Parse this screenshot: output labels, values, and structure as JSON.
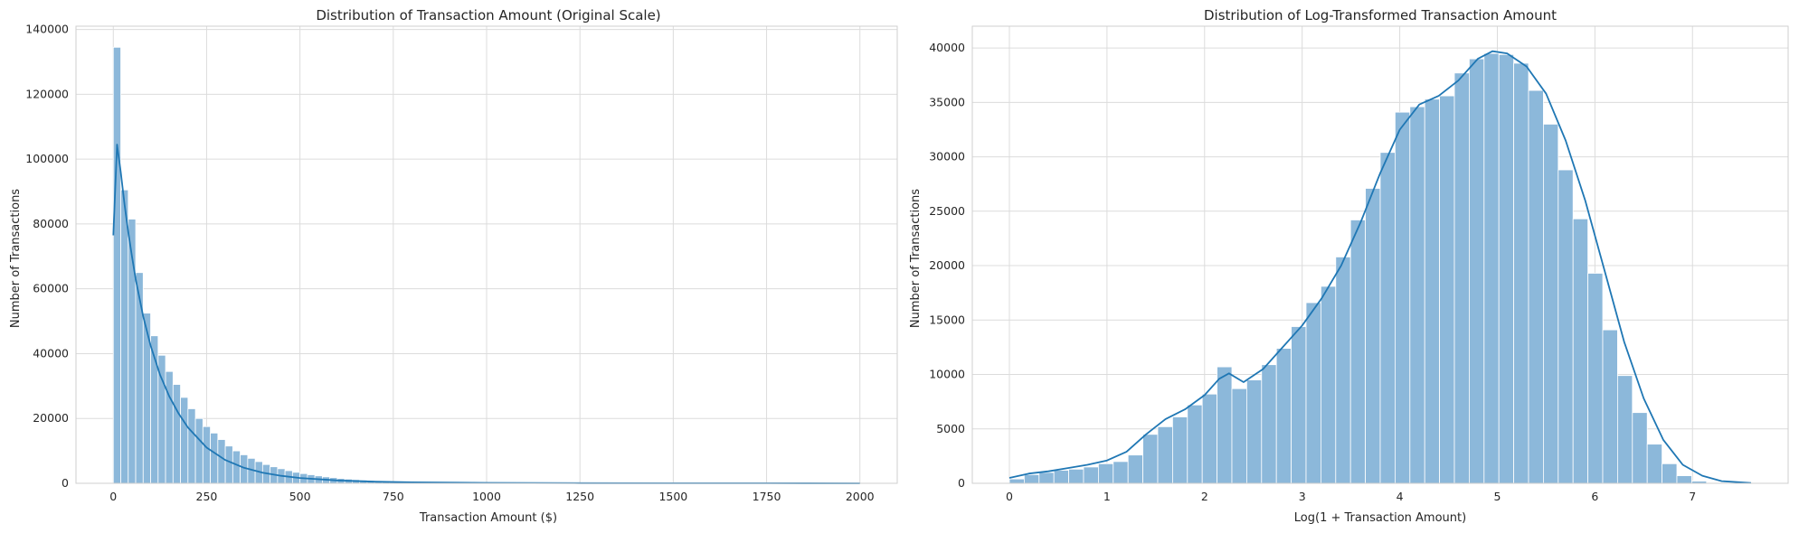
{
  "chart_data": [
    {
      "type": "histogram",
      "title": "Distribution of Transaction Amount (Original Scale)",
      "xlabel": "Transaction Amount ($)",
      "ylabel": "Number of Transactions",
      "xlim": [
        -100,
        2100
      ],
      "ylim": [
        0,
        141000
      ],
      "xticks": [
        0,
        250,
        500,
        750,
        1000,
        1250,
        1500,
        1750,
        2000
      ],
      "yticks": [
        0,
        20000,
        40000,
        60000,
        80000,
        100000,
        120000,
        140000
      ],
      "grid": true,
      "bin_start": 0,
      "bin_width": 20,
      "counts": [
        134500,
        90500,
        81500,
        65000,
        52500,
        45500,
        39500,
        34500,
        30500,
        26500,
        23000,
        20000,
        17500,
        15500,
        13500,
        11500,
        10000,
        8800,
        7700,
        6700,
        5800,
        5100,
        4500,
        3900,
        3400,
        3000,
        2650,
        2300,
        2000,
        1750,
        1500,
        1300,
        1150,
        1000,
        870,
        760,
        660,
        570,
        500,
        430,
        380,
        330,
        290,
        250,
        220,
        190,
        165,
        145,
        125,
        110,
        95,
        85,
        75,
        65,
        58,
        50,
        44,
        40,
        36,
        32,
        28,
        25,
        22,
        20,
        18,
        16,
        14,
        12,
        11,
        10,
        9,
        8,
        7,
        6,
        6,
        5,
        5,
        4,
        4,
        3,
        3,
        3,
        2,
        2,
        2,
        2,
        2,
        1,
        1,
        1,
        1,
        1,
        1,
        1,
        1,
        1,
        1,
        1,
        1,
        1,
        1
      ],
      "kde": {
        "x": [
          0,
          10,
          20,
          30,
          40,
          50,
          60,
          80,
          100,
          125,
          150,
          175,
          200,
          250,
          300,
          350,
          400,
          450,
          500,
          600,
          700,
          800,
          1000,
          1250,
          1500,
          1750,
          2000
        ],
        "y": [
          76500,
          104500,
          96000,
          86000,
          77500,
          70000,
          63000,
          51500,
          42500,
          33500,
          26800,
          21500,
          17200,
          11000,
          7200,
          4800,
          3300,
          2300,
          1650,
          900,
          500,
          300,
          130,
          60,
          30,
          15,
          8
        ]
      },
      "color": "#1f77b4",
      "bar_color": "#8cb8da"
    },
    {
      "type": "histogram",
      "title": "Distribution of Log-Transformed Transaction Amount",
      "xlabel": "Log(1 + Transaction Amount)",
      "ylabel": "Number of Transactions",
      "xlim": [
        -0.38,
        7.98
      ],
      "ylim": [
        0,
        42000
      ],
      "xticks": [
        0,
        1,
        2,
        3,
        4,
        5,
        6,
        7
      ],
      "yticks": [
        0,
        5000,
        10000,
        15000,
        20000,
        25000,
        30000,
        35000,
        40000
      ],
      "grid": true,
      "bin_start": 0,
      "bin_width": 0.152,
      "counts": [
        400,
        800,
        1000,
        1200,
        1300,
        1500,
        1800,
        2000,
        2600,
        4500,
        5200,
        6100,
        7200,
        8200,
        10700,
        8700,
        9500,
        10900,
        12400,
        14400,
        16600,
        18100,
        20800,
        24200,
        27100,
        30400,
        34100,
        34600,
        35300,
        35600,
        37700,
        39000,
        39500,
        39400,
        38600,
        36100,
        33000,
        28800,
        24300,
        19300,
        14100,
        9900,
        6500,
        3600,
        1800,
        700,
        200,
        60,
        20,
        10
      ],
      "kde": {
        "x": [
          0,
          0.2,
          0.4,
          0.6,
          0.8,
          1.0,
          1.2,
          1.4,
          1.6,
          1.8,
          2.0,
          2.15,
          2.25,
          2.4,
          2.6,
          2.8,
          3.0,
          3.2,
          3.4,
          3.6,
          3.8,
          4.0,
          4.2,
          4.4,
          4.6,
          4.8,
          4.95,
          5.1,
          5.3,
          5.5,
          5.7,
          5.9,
          6.1,
          6.3,
          6.5,
          6.7,
          6.9,
          7.1,
          7.3,
          7.6
        ],
        "y": [
          500,
          900,
          1100,
          1400,
          1700,
          2100,
          2900,
          4500,
          5900,
          6800,
          8100,
          9600,
          10100,
          9300,
          10500,
          12500,
          14500,
          17000,
          20000,
          24000,
          28500,
          32500,
          34800,
          35600,
          37000,
          39000,
          39700,
          39500,
          38300,
          35800,
          31500,
          26000,
          19500,
          13000,
          7800,
          4000,
          1700,
          700,
          200,
          30
        ]
      },
      "color": "#1f77b4",
      "bar_color": "#8cb8da"
    }
  ]
}
